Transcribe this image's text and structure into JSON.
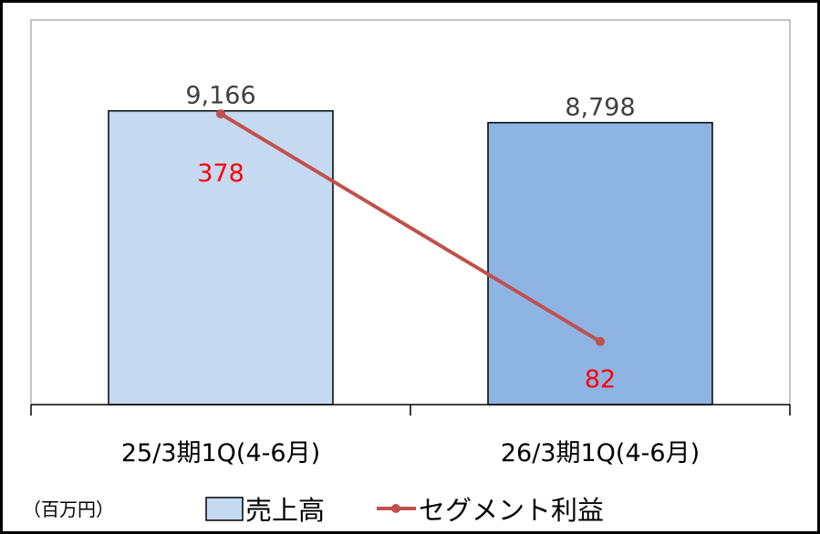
{
  "chart_data": {
    "type": "bar+line",
    "categories": [
      "25/3期1Q(4-6月)",
      "26/3期1Q(4-6月)"
    ],
    "series": [
      {
        "name": "売上高",
        "type": "bar",
        "axis": "primary",
        "values": [
          9166,
          8798
        ],
        "labels": [
          "9,166",
          "8,798"
        ],
        "colors": [
          "#C5D9F1",
          "#8EB4E3"
        ]
      },
      {
        "name": "セグメント利益",
        "type": "line",
        "axis": "secondary",
        "values": [
          378,
          82
        ],
        "labels": [
          "378",
          "82"
        ],
        "color": "#C0504D",
        "label_color": "#FF0000"
      }
    ],
    "ylim": [
      0,
      12000
    ],
    "y2lim": [
      0,
      500
    ],
    "unit_label": "（百万円）",
    "grid": false,
    "legend": "bottom",
    "value_label_color": "#404040"
  }
}
